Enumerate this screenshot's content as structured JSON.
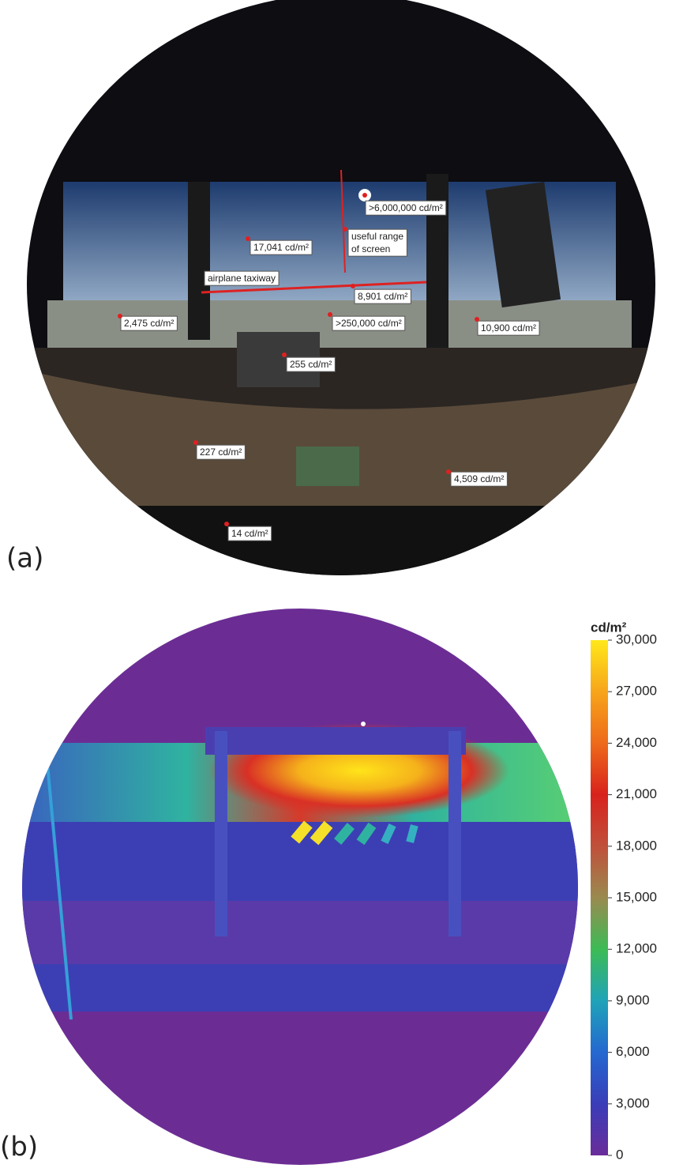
{
  "panel_a": {
    "label": "(a)",
    "annotations": [
      ">6,000,000 cd/m²",
      "17,041 cd/m²",
      "useful range of screen",
      "airplane taxiway",
      "8,901 cd/m²",
      "2,475 cd/m²",
      ">250,000 cd/m²",
      "10,900 cd/m²",
      "255 cd/m²",
      "227 cd/m²",
      "4,509 cd/m²",
      "14 cd/m²"
    ]
  },
  "panel_b": {
    "label": "(b)",
    "colorbar": {
      "title": "cd/m²",
      "lim": [
        0,
        30000
      ],
      "ticks": [
        0,
        {
          "value": 3000,
          "label": "3,000"
        },
        {
          "value": 6000,
          "label": "6,000"
        },
        {
          "value": 9000,
          "label": "9,000"
        },
        {
          "value": 12000,
          "label": "12,000"
        },
        {
          "value": 15000,
          "label": "15,000"
        },
        {
          "value": 18000,
          "label": "18,000"
        },
        {
          "value": 21000,
          "label": "21,000"
        },
        {
          "value": 24000,
          "label": "24,000"
        },
        {
          "value": 27000,
          "label": "27,000"
        },
        {
          "value": 30000,
          "label": "30,000"
        }
      ]
    }
  }
}
